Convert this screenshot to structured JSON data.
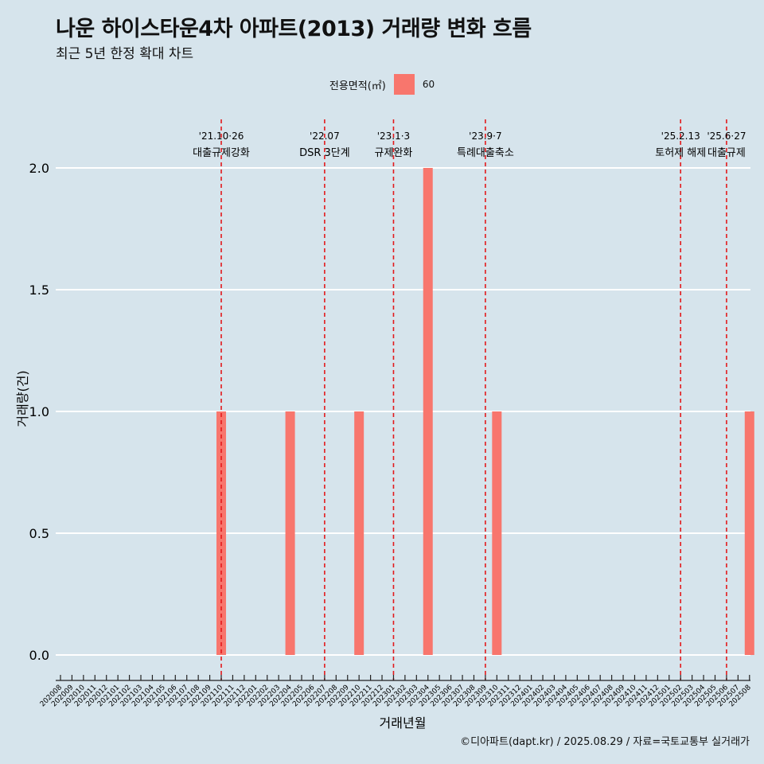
{
  "chart_data": {
    "type": "bar",
    "title": "나운 하이스타운4차 아파트(2013) 거래량 변화 흐름",
    "subtitle": "최근 5년 한정 확대 차트",
    "xlabel": "거래년월",
    "ylabel": "거래량(건)",
    "ylim": [
      0,
      2.0
    ],
    "yticks": [
      "0.0",
      "0.5",
      "1.0",
      "1.5",
      "2.0"
    ],
    "grid": "horizontal",
    "legend": {
      "title": "전용면적(㎡)",
      "position": "top",
      "entries": [
        {
          "label": "60",
          "color": "#f8766d"
        }
      ]
    },
    "categories": [
      "202008",
      "202009",
      "202010",
      "202011",
      "202012",
      "202101",
      "202102",
      "202103",
      "202104",
      "202105",
      "202106",
      "202107",
      "202108",
      "202109",
      "202110",
      "202111",
      "202112",
      "202201",
      "202202",
      "202203",
      "202204",
      "202205",
      "202206",
      "202207",
      "202208",
      "202209",
      "202210",
      "202211",
      "202212",
      "202301",
      "202302",
      "202303",
      "202304",
      "202305",
      "202306",
      "202307",
      "202308",
      "202309",
      "202310",
      "202311",
      "202312",
      "202401",
      "202402",
      "202403",
      "202404",
      "202405",
      "202406",
      "202407",
      "202408",
      "202409",
      "202410",
      "202411",
      "202412",
      "202501",
      "202502",
      "202503",
      "202504",
      "202505",
      "202506",
      "202507",
      "202508"
    ],
    "series": [
      {
        "name": "60",
        "color": "#f8766d",
        "values": [
          0,
          0,
          0,
          0,
          0,
          0,
          0,
          0,
          0,
          0,
          0,
          0,
          0,
          0,
          1,
          0,
          0,
          0,
          0,
          0,
          1,
          0,
          0,
          0,
          0,
          0,
          1,
          0,
          0,
          0,
          0,
          0,
          2,
          0,
          0,
          0,
          0,
          0,
          1,
          0,
          0,
          0,
          0,
          0,
          0,
          0,
          0,
          0,
          0,
          0,
          0,
          0,
          0,
          0,
          0,
          0,
          0,
          0,
          0,
          0,
          1
        ]
      }
    ],
    "events": [
      {
        "date": "'21.10·26",
        "label": "대출규제강화",
        "month": "202110"
      },
      {
        "date": "'22.07",
        "label": "DSR 3단계",
        "month": "202207"
      },
      {
        "date": "'23.1·3",
        "label": "규제완화",
        "month": "202301"
      },
      {
        "date": "'23.9·7",
        "label": "특례대출축소",
        "month": "202309"
      },
      {
        "date": "'25.2.13",
        "label": "토허제 해제",
        "month": "202502"
      },
      {
        "date": "'25.6·27",
        "label": "대출규제",
        "month": "202506"
      }
    ],
    "event_line_color": "#e31a1c",
    "caption": "©디아파트(dapt.kr) / 2025.08.29 / 자료=국토교통부 실거래가"
  }
}
